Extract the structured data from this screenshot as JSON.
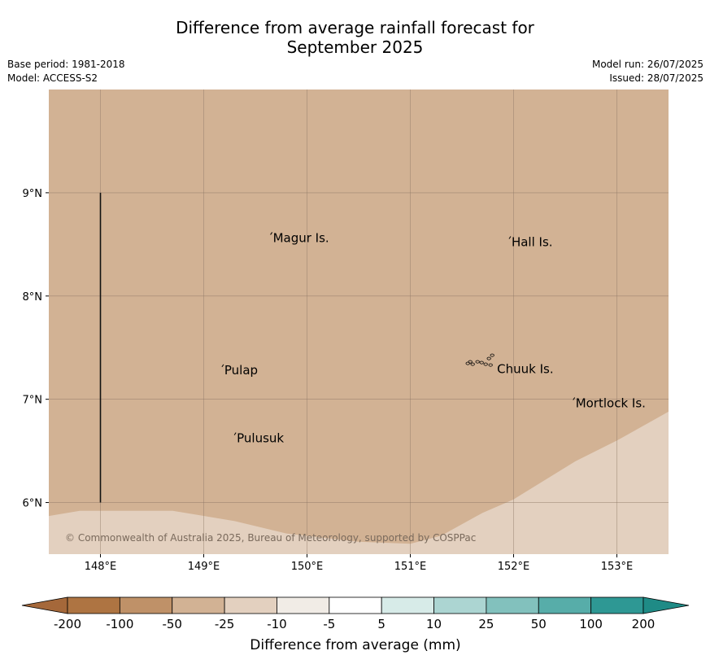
{
  "title": {
    "line1": "Difference from average rainfall forecast for",
    "line2": "September 2025"
  },
  "info": {
    "base_period": "Base period: 1981-2018",
    "model": "Model: ACCESS-S2",
    "model_run": "Model run: 26/07/2025",
    "issued": "Issued: 28/07/2025"
  },
  "map": {
    "lon_range": [
      147.5,
      153.5
    ],
    "lat_range": [
      5.5,
      10.0
    ],
    "lon_ticks": [
      {
        "value": 148,
        "label": "148°E"
      },
      {
        "value": 149,
        "label": "149°E"
      },
      {
        "value": 150,
        "label": "150°E"
      },
      {
        "value": 151,
        "label": "151°E"
      },
      {
        "value": 152,
        "label": "152°E"
      },
      {
        "value": 153,
        "label": "153°E"
      }
    ],
    "lat_ticks": [
      {
        "value": 9,
        "label": "9°N"
      },
      {
        "value": 8,
        "label": "8°N"
      },
      {
        "value": 7,
        "label": "7°N"
      },
      {
        "value": 6,
        "label": "6°N"
      }
    ],
    "background_color": "#d2b294",
    "light_region_color": "#e3d0bf",
    "grid_color": "#8a7564",
    "boundary_line": {
      "lon": 148,
      "lat_from": 6.0,
      "lat_to": 9.0
    },
    "light_region_boundary": [
      [
        147.5,
        5.87
      ],
      [
        147.8,
        5.92
      ],
      [
        148.7,
        5.92
      ],
      [
        149.3,
        5.82
      ],
      [
        149.8,
        5.7
      ],
      [
        150.5,
        5.62
      ],
      [
        151.0,
        5.6
      ],
      [
        151.3,
        5.68
      ],
      [
        151.7,
        5.9
      ],
      [
        152.0,
        6.03
      ],
      [
        152.6,
        6.4
      ],
      [
        153.0,
        6.6
      ],
      [
        153.5,
        6.88
      ]
    ],
    "places": [
      {
        "name": "Magur Is.",
        "lon": 149.67,
        "lat": 8.57
      },
      {
        "name": "Hall Is.",
        "lon": 151.98,
        "lat": 8.53
      },
      {
        "name": "Pulap",
        "lon": 149.2,
        "lat": 7.29
      },
      {
        "name": "Chuuk Is.",
        "lon": 151.84,
        "lat": 7.3
      },
      {
        "name": "Mortlock Is.",
        "lon": 152.6,
        "lat": 6.97
      },
      {
        "name": "Pulusuk",
        "lon": 149.32,
        "lat": 6.63
      }
    ],
    "copyright": "© Commonwealth of Australia 2025, Bureau of Meteorology, supported by COSPPac"
  },
  "colorbar": {
    "label": "Difference from average (mm)",
    "ticks": [
      "-200",
      "-100",
      "-50",
      "-25",
      "-10",
      "-5",
      "5",
      "10",
      "25",
      "50",
      "100",
      "200"
    ],
    "colors": [
      "#ae7442",
      "#bf9168",
      "#d2b294",
      "#e3d0bf",
      "#f1ece6",
      "#ffffff",
      "#d7ebe8",
      "#acd5d2",
      "#82c1bd",
      "#57ada9",
      "#2e9894"
    ],
    "under_color": "#a5683a",
    "over_color": "#1f8b86"
  }
}
